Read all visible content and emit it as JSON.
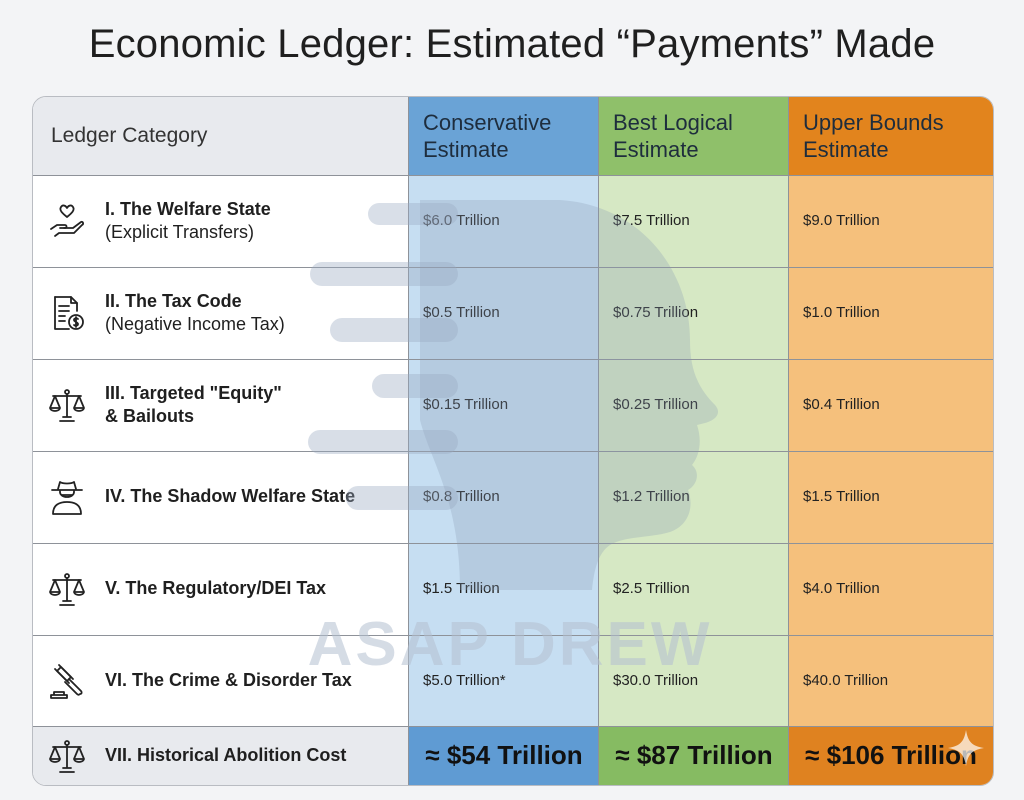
{
  "title": "Economic Ledger: Estimated “Payments” Made",
  "colors": {
    "conservative_header": "#6aa3d6",
    "conservative_body": "#c6def2",
    "best_header": "#8fc06a",
    "best_body": "#d6e8c4",
    "upper_header": "#e2841d",
    "upper_body": "#f5c07c",
    "category_header": "#e8eaee"
  },
  "header": {
    "category": "Ledger Category",
    "estimates": [
      {
        "line1": "Conservative",
        "line2": "Estimate"
      },
      {
        "line1": "Best Logical",
        "line2": "Estimate"
      },
      {
        "line1": "Upper Bounds",
        "line2": "Estimate"
      }
    ]
  },
  "rows": [
    {
      "icon": "heart-hand-icon",
      "name": "I. The Welfare State",
      "sub": "(Explicit Transfers)",
      "values": [
        "$6.0 Trillion",
        "$7.5 Trillion",
        "$9.0 Trillion"
      ]
    },
    {
      "icon": "tax-document-icon",
      "name": "II. The Tax Code",
      "sub": "(Negative Income Tax)",
      "values": [
        "$0.5 Trillion",
        "$0.75 Trillion",
        "$1.0 Trillion"
      ]
    },
    {
      "icon": "scales-icon",
      "name": "III. Targeted \"Equity\"",
      "sub": "& Bailouts",
      "values": [
        "$0.15 Trillion",
        "$0.25 Trillion",
        "$0.4 Trillion"
      ]
    },
    {
      "icon": "incognito-person-icon",
      "name": "IV. The Shadow Welfare State",
      "sub": "",
      "values": [
        "$0.8 Trillion",
        "$1.2 Trillion",
        "$1.5 Trillion"
      ]
    },
    {
      "icon": "scales-icon",
      "name": "V. The Regulatory/DEI Tax",
      "sub": "",
      "values": [
        "$1.5 Trillion",
        "$2.5 Trillion",
        "$4.0 Trillion"
      ]
    },
    {
      "icon": "gavel-icon",
      "name": "VI. The Crime & Disorder Tax",
      "sub": "",
      "values": [
        "$5.0 Trillion*",
        "$30.0 Trillion",
        "$40.0 Trillion"
      ]
    }
  ],
  "total": {
    "icon": "scales-icon",
    "name": "VII. Historical Abolition Cost",
    "values": [
      "≈ $54 Trillion",
      "≈ $87 Trillion",
      "≈ $106 Trillion"
    ]
  },
  "watermark": {
    "text": "ASAP DREW"
  }
}
